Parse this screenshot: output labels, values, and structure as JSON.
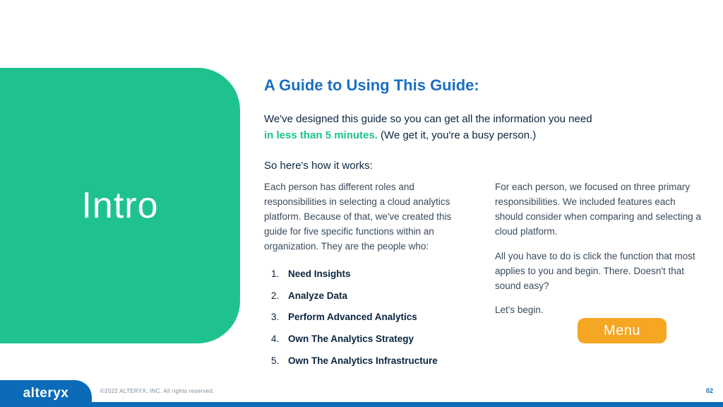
{
  "side": {
    "title": "Intro"
  },
  "heading": "A Guide to Using This Guide:",
  "intro": {
    "line1": "We've designed this guide so you can get all the information you need",
    "highlight": "in less than 5 minutes.",
    "after_highlight": " (We get it, you're a busy person.)"
  },
  "subhead": "So here's how it works:",
  "col_left": {
    "p1": "Each person has different roles and responsibilities in selecting a cloud analytics platform. Because of that, we've created this guide for five specific functions within an organization. They are the people who:"
  },
  "functions": [
    "Need Insights",
    "Analyze Data",
    "Perform Advanced Analytics",
    "Own The Analytics Strategy",
    "Own The Analytics Infrastructure"
  ],
  "col_right": {
    "p1": "For each person, we focused on three primary responsibilities. We included features each should consider when comparing and selecting a cloud platform.",
    "p2": "All you have to do is click the function that most applies to you and begin. There. Doesn't that sound easy?",
    "p3": "Let's begin."
  },
  "menu_label": "Menu",
  "footer": {
    "logo": "alteryx",
    "copyright": "©2022 ALTERYX, INC. All rights reserved.",
    "page": "02"
  },
  "colors": {
    "accent_green": "#1fc28f",
    "accent_blue": "#1a6fc2",
    "brand_blue": "#0b6bb8",
    "menu_orange": "#f5a623",
    "text_dark": "#0a2540"
  }
}
